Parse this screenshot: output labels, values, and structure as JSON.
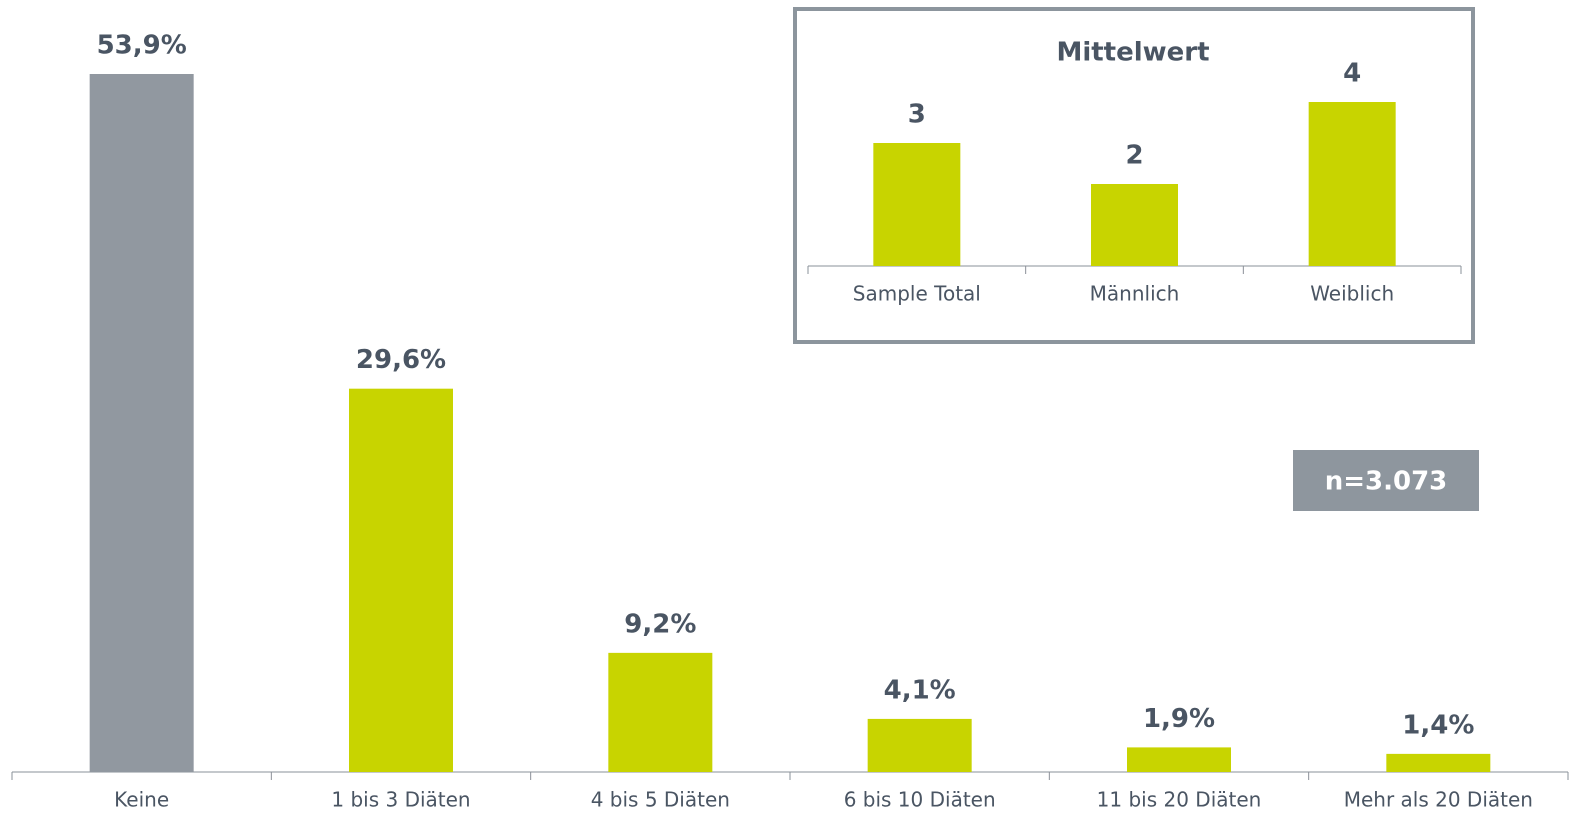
{
  "chart_data": [
    {
      "type": "bar",
      "categories": [
        "Keine",
        "1 bis 3 Diäten",
        "4 bis 5 Diäten",
        "6 bis 10 Diäten",
        "11 bis 20 Diäten",
        "Mehr als 20 Diäten"
      ],
      "values": [
        53.9,
        29.6,
        9.2,
        4.1,
        1.9,
        1.4
      ],
      "value_labels": [
        "53,9%",
        "29,6%",
        "9,2%",
        "4,1%",
        "1,9%",
        "1,4%"
      ],
      "colors": [
        "#9198a0",
        "#c8d400",
        "#c8d400",
        "#c8d400",
        "#c8d400",
        "#c8d400"
      ],
      "annotation": "n=3.073"
    },
    {
      "type": "bar",
      "title": "Mittelwert",
      "categories": [
        "Sample Total",
        "Männlich",
        "Weiblich"
      ],
      "values": [
        3,
        2,
        4
      ],
      "color": "#c8d400"
    }
  ]
}
